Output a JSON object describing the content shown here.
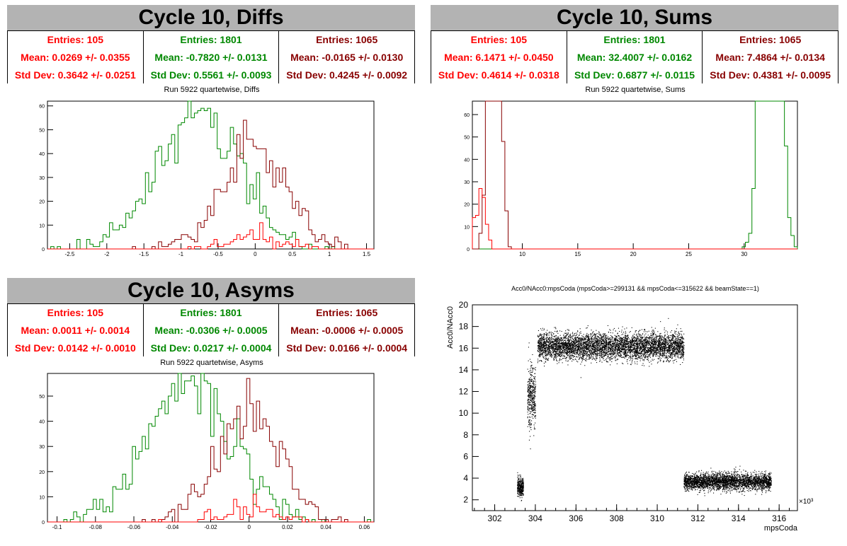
{
  "panels": {
    "diffs": {
      "title": "Cycle 10, Diffs",
      "subtitle": "Run 5922 quartetwise, Diffs",
      "stats": [
        {
          "entries": "Entries: 105",
          "mean": "Mean: 0.0269 +/- 0.0355",
          "std": "Std Dev: 0.3642 +/- 0.0251",
          "color": "#ff0000"
        },
        {
          "entries": "Entries: 1801",
          "mean": "Mean: -0.7820 +/- 0.0131",
          "std": "Std Dev: 0.5561 +/- 0.0093",
          "color": "#008800"
        },
        {
          "entries": "Entries: 1065",
          "mean": "Mean: -0.0165 +/- 0.0130",
          "std": "Std Dev: 0.4245 +/- 0.0092",
          "color": "#880000"
        }
      ]
    },
    "sums": {
      "title": "Cycle 10, Sums",
      "subtitle": "Run 5922 quartetwise, Sums",
      "stats": [
        {
          "entries": "Entries: 105",
          "mean": "Mean: 6.1471 +/- 0.0450",
          "std": "Std Dev: 0.4614 +/- 0.0318",
          "color": "#ff0000"
        },
        {
          "entries": "Entries: 1801",
          "mean": "Mean: 32.4007 +/- 0.0162",
          "std": "Std Dev: 0.6877 +/- 0.0115",
          "color": "#008800"
        },
        {
          "entries": "Entries: 1065",
          "mean": "Mean: 7.4864 +/- 0.0134",
          "std": "Std Dev: 0.4381 +/- 0.0095",
          "color": "#880000"
        }
      ]
    },
    "asyms": {
      "title": "Cycle 10, Asyms",
      "subtitle": "Run 5922 quartetwise, Asyms",
      "stats": [
        {
          "entries": "Entries: 105",
          "mean": "Mean: 0.0011 +/- 0.0014",
          "std": "Std Dev: 0.0142 +/- 0.0010",
          "color": "#ff0000"
        },
        {
          "entries": "Entries: 1801",
          "mean": "Mean: -0.0306 +/- 0.0005",
          "std": "Std Dev: 0.0217 +/- 0.0004",
          "color": "#008800"
        },
        {
          "entries": "Entries: 1065",
          "mean": "Mean: -0.0006 +/- 0.0005",
          "std": "Std Dev: 0.0166 +/- 0.0004",
          "color": "#880000"
        }
      ]
    },
    "scatter": {
      "title": "Acc0/NAcc0:mpsCoda (mpsCoda>=299131 && mpsCoda<=315622 && beamState==1)"
    }
  },
  "chart_data": [
    {
      "id": "diffs",
      "type": "histogram",
      "xlim": [
        -2.8,
        1.6
      ],
      "ylim": [
        0,
        62
      ],
      "xticks": [
        -2.5,
        -2,
        -1.5,
        -1,
        -0.5,
        0,
        0.5,
        1,
        1.5
      ],
      "xtick_labels": [
        "-2.5",
        "-2",
        "-1.5",
        "-1",
        "-0.5",
        "0",
        "0.5",
        "1",
        "1.5"
      ],
      "yticks": [
        0,
        10,
        20,
        30,
        40,
        50,
        60
      ],
      "series": [
        {
          "color": "#008800",
          "entries": 1801,
          "mean": -0.782,
          "std": 0.5561
        },
        {
          "color": "#880000",
          "entries": 1065,
          "mean": -0.0165,
          "std": 0.4245
        },
        {
          "color": "#ff0000",
          "entries": 105,
          "mean": 0.0269,
          "std": 0.3642
        }
      ]
    },
    {
      "id": "sums",
      "type": "histogram",
      "xlim": [
        5.5,
        34.8
      ],
      "ylim": [
        0,
        66
      ],
      "xticks": [
        10,
        15,
        20,
        25,
        30
      ],
      "xtick_labels": [
        "10",
        "15",
        "20",
        "25",
        "30"
      ],
      "yticks": [
        0,
        10,
        20,
        30,
        40,
        50,
        60
      ],
      "series": [
        {
          "color": "#008800",
          "entries": 1801,
          "mean": 32.4007,
          "std": 0.6877
        },
        {
          "color": "#880000",
          "entries": 1065,
          "mean": 7.4864,
          "std": 0.4381
        },
        {
          "color": "#ff0000",
          "entries": 105,
          "mean": 6.1471,
          "std": 0.4614
        }
      ]
    },
    {
      "id": "asyms",
      "type": "histogram",
      "xlim": [
        -0.105,
        0.065
      ],
      "ylim": [
        0,
        59
      ],
      "xticks": [
        -0.1,
        -0.08,
        -0.06,
        -0.04,
        -0.02,
        0,
        0.02,
        0.04,
        0.06
      ],
      "xtick_labels": [
        "-0.1",
        "-0.08",
        "-0.06",
        "-0.04",
        "-0.02",
        "0",
        "0.02",
        "0.04",
        "0.06"
      ],
      "yticks": [
        0,
        10,
        20,
        30,
        40,
        50
      ],
      "series": [
        {
          "color": "#008800",
          "entries": 1801,
          "mean": -0.0306,
          "std": 0.0217
        },
        {
          "color": "#880000",
          "entries": 1065,
          "mean": -0.0006,
          "std": 0.0166
        },
        {
          "color": "#ff0000",
          "entries": 105,
          "mean": 0.0011,
          "std": 0.0142
        }
      ]
    },
    {
      "id": "scatter",
      "type": "scatter",
      "xlabel": "mpsCoda",
      "ylabel": "Acc0/NAcc0",
      "xlim": [
        300.9,
        316.9
      ],
      "ylim": [
        1,
        20
      ],
      "x_exponent_label": "×10³",
      "xticks": [
        302,
        304,
        306,
        308,
        310,
        312,
        314,
        316
      ],
      "xtick_labels": [
        "302",
        "304",
        "306",
        "308",
        "310",
        "312",
        "314",
        "316"
      ],
      "yticks": [
        2,
        4,
        6,
        8,
        10,
        12,
        14,
        16,
        18,
        20
      ],
      "ytick_labels": [
        "2",
        "4",
        "6",
        "8",
        "10",
        "12",
        "14",
        "16",
        "18",
        "20"
      ],
      "clusters": [
        {
          "x": [
            303.1,
            303.4
          ],
          "y_center": 3.2,
          "y_spread": 0.45
        },
        {
          "x": [
            303.6,
            304.0
          ],
          "y_center": 11.5,
          "y_spread": 1.4
        },
        {
          "x": [
            304.1,
            311.3
          ],
          "y_center": 16.2,
          "y_spread": 0.6
        },
        {
          "x": [
            311.3,
            315.6
          ],
          "y_center": 3.7,
          "y_spread": 0.38
        }
      ]
    }
  ]
}
